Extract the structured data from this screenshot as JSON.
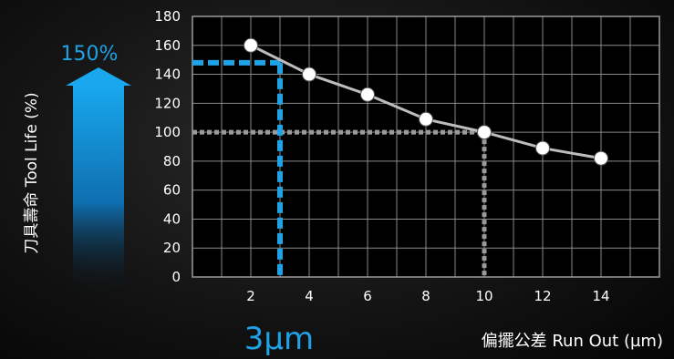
{
  "chart_data": {
    "type": "line",
    "x": [
      2,
      4,
      6,
      8,
      10,
      12,
      14
    ],
    "series": [
      {
        "values": [
          160,
          140,
          126,
          109,
          100,
          89,
          82
        ]
      }
    ],
    "xlabel": "偏擺公差 Run Out (µm)",
    "ylabel": "刀具壽命 Tool Life (%)",
    "x_ticks": [
      "2",
      "4",
      "6",
      "8",
      "10",
      "12",
      "14"
    ],
    "y_ticks": [
      "0",
      "20",
      "40",
      "60",
      "80",
      "100",
      "120",
      "140",
      "160",
      "180"
    ],
    "xlim": [
      0,
      16
    ],
    "ylim": [
      0,
      180
    ],
    "grid": true,
    "annotations": {
      "highlight_value": "150%",
      "highlight_x_value": "3µm",
      "highlight_point": {
        "x": 3,
        "y": 148
      },
      "reference_point": {
        "x": 10,
        "y": 100
      }
    },
    "colors": {
      "line": "#bdbdbd",
      "marker_fill": "#ffffff",
      "highlight": "#1fa2e6",
      "reference": "#9a9a9a",
      "grid": "#8a8a8a",
      "plot_background": "#000000"
    }
  }
}
